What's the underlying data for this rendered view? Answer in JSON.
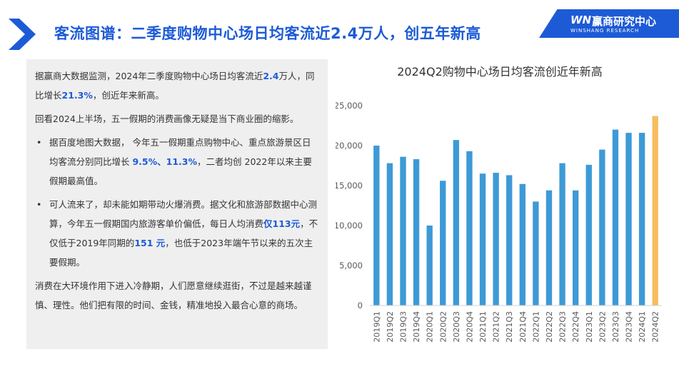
{
  "header": {
    "title": "客流图谱：二季度购物中心场日均客流近2.4万人，创五年新高"
  },
  "brand": {
    "logo_text": "WN",
    "name": "赢商研究中心",
    "subtitle": "WINSHANG RESEARCH",
    "color": "#1d5bd6"
  },
  "article": {
    "p1_a": "据赢商大数据监测，2024年二季度购物中心场日均客流近",
    "p1_b": "2.4",
    "p1_c": "万人，同比增长",
    "p1_d": "21.3%",
    "p1_e": "，创近年来新高。",
    "p2": "回看2024上半场，五一假期的消费画像无疑是当下商业圈的缩影。",
    "b1_a": "据百度地图大数据， 今年五一假期重点购物中心、重点旅游景区日均客流分别同比增长 ",
    "b1_b": "9.5%、11.3%",
    "b1_c": "，二者均创 2022年以来主要假期最高值。",
    "b2_a": "可人流来了，却未能如期带动火爆消费。据文化和旅游部数据中心测算，今年五一假期国内旅游客单价偏低，每日人均消费",
    "b2_b": "仅113元",
    "b2_c": "，不仅低于2019年同期的",
    "b2_d": "151 元",
    "b2_e": "，也低于2023年端午节以来的五次主要假期。",
    "p3": "消费在大环境作用下进入冷静期，人们愿意继续逛街，不过是越来越谨慎、理性。他们把有限的时间、金钱，精准地投入最合心意的商场。"
  },
  "chart_data": {
    "type": "bar",
    "title": "2024Q2购物中心场日均客流创近年新高",
    "categories": [
      "2019Q1",
      "2019Q2",
      "2019Q3",
      "2019Q4",
      "2020Q1",
      "2020Q2",
      "2020Q3",
      "2020Q4",
      "2021Q1",
      "2021Q2",
      "2021Q3",
      "2021Q4",
      "2022Q1",
      "2022Q2",
      "2022Q3",
      "2022Q4",
      "2023Q1",
      "2023Q2",
      "2023Q3",
      "2023Q4",
      "2024Q1",
      "2024Q2"
    ],
    "values": [
      20000,
      17800,
      18600,
      18300,
      10000,
      15600,
      20700,
      19300,
      16500,
      16600,
      16300,
      15200,
      13000,
      14400,
      17800,
      14400,
      17600,
      19500,
      22000,
      21600,
      21600,
      23700
    ],
    "yticks": [
      "0",
      "5,000",
      "10,000",
      "15,000",
      "20,000",
      "25,000"
    ],
    "ylim": [
      0,
      25000
    ],
    "bar_color": "#3d9ad6",
    "highlight_color": "#f7bd60",
    "highlight_index": 21
  }
}
